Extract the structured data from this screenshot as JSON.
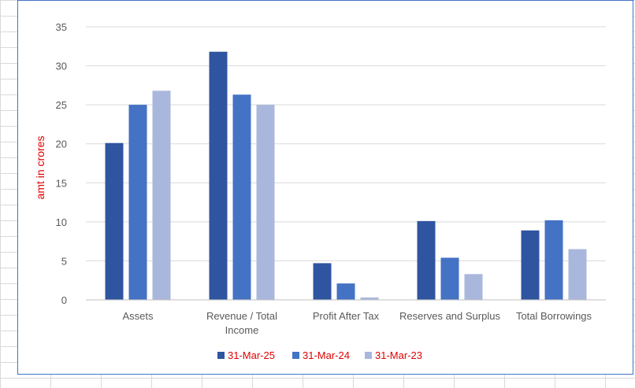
{
  "chart_data": {
    "type": "bar",
    "title": "",
    "xlabel": "",
    "ylabel": "amt in crores",
    "ylim": [
      0,
      35
    ],
    "yticks": [
      0,
      5,
      10,
      15,
      20,
      25,
      30,
      35
    ],
    "grid": true,
    "legend_position": "bottom",
    "categories": [
      "Assets",
      "Revenue / Total Income",
      "Profit After Tax",
      "Reserves and Surplus",
      "Total Borrowings"
    ],
    "category_lines": [
      [
        "Assets"
      ],
      [
        "Revenue / Total",
        "Income"
      ],
      [
        "Profit After Tax"
      ],
      [
        "Reserves and Surplus"
      ],
      [
        "Total Borrowings"
      ]
    ],
    "series": [
      {
        "name": "31-Mar-25",
        "color": "#2f55a0",
        "values": [
          20.1,
          31.8,
          4.7,
          10.1,
          8.9
        ]
      },
      {
        "name": "31-Mar-24",
        "color": "#4472c4",
        "values": [
          25.0,
          26.3,
          2.1,
          5.4,
          10.2
        ]
      },
      {
        "name": "31-Mar-23",
        "color": "#a9b7dc",
        "values": [
          26.8,
          25.0,
          0.3,
          3.3,
          6.5
        ]
      }
    ]
  }
}
